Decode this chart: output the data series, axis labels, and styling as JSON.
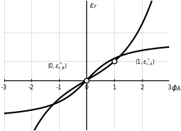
{
  "xlim": [
    -3,
    3
  ],
  "ylim": [
    -2.2,
    3.5
  ],
  "xticks": [
    -3,
    -2,
    -1,
    0,
    1,
    2,
    3
  ],
  "background_color": "#ffffff",
  "grid_color": "#bbbbbb",
  "curve_color": "#000000",
  "curve_linewidth": 1.6,
  "flat_a": 1.15,
  "flat_b": 1.1,
  "steep_a": 0.75,
  "steep_b": 0.95,
  "annotation1_text": "$(0,\\varepsilon_{r,B}^*)$",
  "annotation2_text": "$(1,\\varepsilon_{r,A}^*)$",
  "figsize": [
    2.6,
    1.89
  ],
  "dpi": 100,
  "hgrid_y": [
    1.5
  ],
  "vgrid_x": [
    -3,
    -2,
    -1,
    0,
    1,
    2,
    3
  ]
}
